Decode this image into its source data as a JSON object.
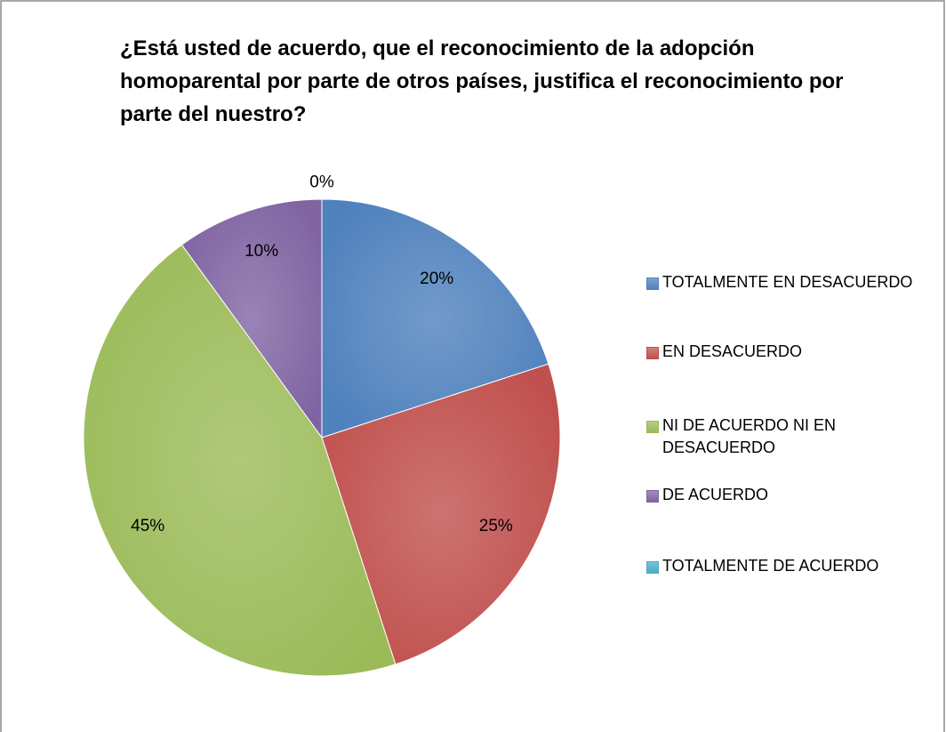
{
  "chart_data": {
    "type": "pie",
    "title": "¿Está usted de acuerdo, que el reconocimiento de la adopción homoparental por parte de otros países, justifica el reconocimiento por parte del nuestro?",
    "categories": [
      "TOTALMENTE EN DESACUERDO",
      "EN DESACUERDO",
      "NI DE ACUERDO NI EN DESACUERDO",
      "DE ACUERDO",
      "TOTALMENTE DE ACUERDO"
    ],
    "values": [
      20,
      25,
      45,
      10,
      0
    ],
    "value_labels": [
      "20%",
      "25%",
      "45%",
      "10%",
      "0%"
    ],
    "colors": [
      "#4f81bd",
      "#c0504d",
      "#9bbb59",
      "#8064a2",
      "#4bacc6"
    ],
    "legend": "right"
  }
}
